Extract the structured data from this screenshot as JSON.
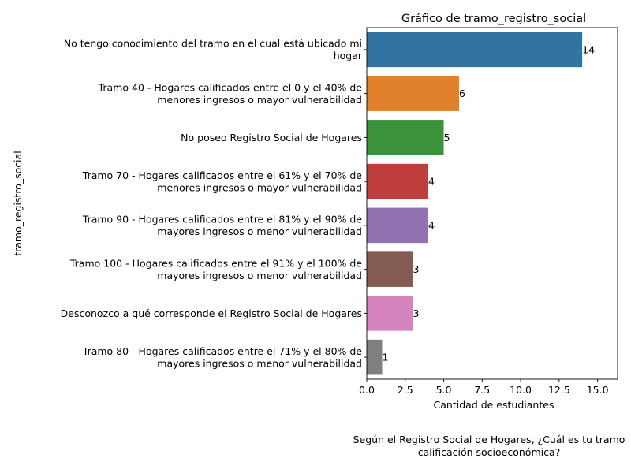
{
  "chart_data": {
    "type": "bar",
    "orientation": "horizontal",
    "title": "Gráfico de tramo_registro_social",
    "xlabel": "Cantidad de estudiantes",
    "ylabel": "tramo_registro_social",
    "caption_lines": [
      "Según el Registro Social de Hogares, ¿Cuál es tu tramo",
      "calificación socioeconómica?"
    ],
    "xlim": [
      0,
      16.3
    ],
    "xticks": [
      "0.0",
      "2.5",
      "5.0",
      "7.5",
      "10.0",
      "12.5",
      "15.0"
    ],
    "grid": false,
    "bars": [
      {
        "category_lines": [
          "No tengo conocimiento del tramo en el cual está ubicado mi",
          "hogar"
        ],
        "value": 14,
        "label": "14",
        "color": "#3274a1"
      },
      {
        "category_lines": [
          "Tramo 40 - Hogares calificados entre el 0 y el 40% de",
          "menores ingresos o mayor vulnerabilidad"
        ],
        "value": 6,
        "label": "6",
        "color": "#e1812c"
      },
      {
        "category_lines": [
          "No poseo Registro Social de Hogares"
        ],
        "value": 5,
        "label": "5",
        "color": "#3a923a"
      },
      {
        "category_lines": [
          "Tramo 70 - Hogares calificados entre el 61% y el 70% de",
          "menores ingresos o mayor vulnerabilidad"
        ],
        "value": 4,
        "label": "4",
        "color": "#c03d3e"
      },
      {
        "category_lines": [
          "Tramo 90 - Hogares calificados entre el 81% y el 90% de",
          "mayores ingresos o menor vulnerabilidad"
        ],
        "value": 4,
        "label": "4",
        "color": "#9372b2"
      },
      {
        "category_lines": [
          "Tramo 100 - Hogares calificados entre el 91% y el 100% de",
          "mayores ingresos o menor vulnerabilidad"
        ],
        "value": 3,
        "label": "3",
        "color": "#845b53"
      },
      {
        "category_lines": [
          "Desconozco a qué corresponde el Registro Social de Hogares"
        ],
        "value": 3,
        "label": "3",
        "color": "#d684bd"
      },
      {
        "category_lines": [
          "Tramo 80 - Hogares calificados entre el 71% y el 80% de",
          "mayores ingresos o menor vulnerabilidad"
        ],
        "value": 1,
        "label": "1",
        "color": "#7f7f7f"
      }
    ]
  }
}
